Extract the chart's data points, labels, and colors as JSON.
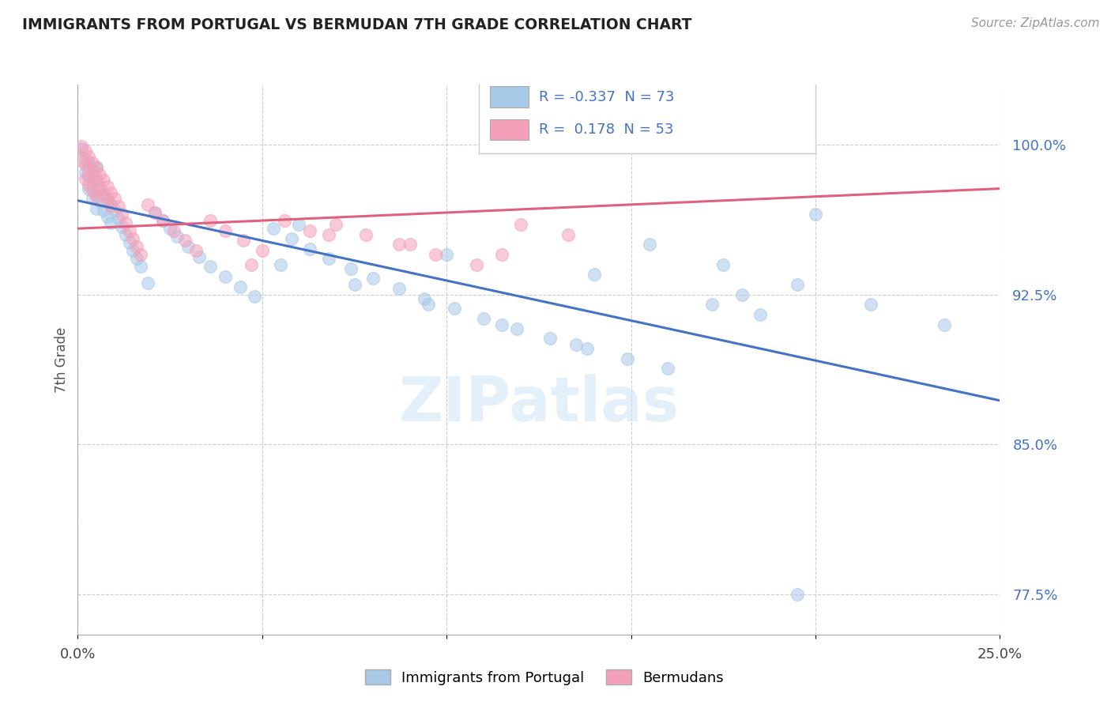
{
  "title": "IMMIGRANTS FROM PORTUGAL VS BERMUDAN 7TH GRADE CORRELATION CHART",
  "source_text": "Source: ZipAtlas.com",
  "ylabel": "7th Grade",
  "xlim": [
    0.0,
    0.25
  ],
  "ylim": [
    0.755,
    1.03
  ],
  "yticks": [
    0.775,
    0.85,
    0.925,
    1.0
  ],
  "ytick_labels": [
    "77.5%",
    "85.0%",
    "92.5%",
    "100.0%"
  ],
  "xtick_labels": [
    "0.0%",
    "25.0%"
  ],
  "legend_blue_r": "-0.337",
  "legend_blue_n": "73",
  "legend_pink_r": "0.178",
  "legend_pink_n": "53",
  "blue_color": "#a8c8e8",
  "pink_color": "#f4a0b8",
  "blue_line_color": "#4472C4",
  "pink_line_color": "#E06080",
  "watermark": "ZIPatlas",
  "blue_trend_x": [
    0.0,
    0.25
  ],
  "blue_trend_y": [
    0.972,
    0.872
  ],
  "pink_trend_x": [
    0.0,
    0.25
  ],
  "pink_trend_y": [
    0.958,
    0.978
  ],
  "blue_scatter_x": [
    0.001,
    0.002,
    0.002,
    0.003,
    0.003,
    0.003,
    0.004,
    0.004,
    0.004,
    0.005,
    0.005,
    0.005,
    0.005,
    0.006,
    0.006,
    0.007,
    0.007,
    0.008,
    0.008,
    0.009,
    0.009,
    0.01,
    0.011,
    0.012,
    0.013,
    0.014,
    0.015,
    0.016,
    0.017,
    0.019,
    0.021,
    0.023,
    0.025,
    0.027,
    0.03,
    0.033,
    0.036,
    0.04,
    0.044,
    0.048,
    0.053,
    0.058,
    0.063,
    0.068,
    0.074,
    0.08,
    0.087,
    0.094,
    0.102,
    0.11,
    0.119,
    0.128,
    0.138,
    0.149,
    0.16,
    0.172,
    0.185,
    0.055,
    0.075,
    0.095,
    0.115,
    0.135,
    0.155,
    0.175,
    0.195,
    0.215,
    0.235,
    0.06,
    0.1,
    0.14,
    0.18,
    0.2,
    0.195
  ],
  "blue_scatter_y": [
    0.998,
    0.993,
    0.986,
    0.991,
    0.984,
    0.978,
    0.987,
    0.98,
    0.973,
    0.989,
    0.982,
    0.975,
    0.968,
    0.979,
    0.972,
    0.975,
    0.967,
    0.973,
    0.964,
    0.97,
    0.961,
    0.967,
    0.963,
    0.959,
    0.955,
    0.951,
    0.947,
    0.943,
    0.939,
    0.931,
    0.966,
    0.962,
    0.958,
    0.954,
    0.949,
    0.944,
    0.939,
    0.934,
    0.929,
    0.924,
    0.958,
    0.953,
    0.948,
    0.943,
    0.938,
    0.933,
    0.928,
    0.923,
    0.918,
    0.913,
    0.908,
    0.903,
    0.898,
    0.893,
    0.888,
    0.92,
    0.915,
    0.94,
    0.93,
    0.92,
    0.91,
    0.9,
    0.95,
    0.94,
    0.93,
    0.92,
    0.91,
    0.96,
    0.945,
    0.935,
    0.925,
    0.965,
    0.775
  ],
  "pink_scatter_x": [
    0.001,
    0.001,
    0.002,
    0.002,
    0.002,
    0.003,
    0.003,
    0.003,
    0.004,
    0.004,
    0.004,
    0.005,
    0.005,
    0.005,
    0.006,
    0.006,
    0.007,
    0.007,
    0.008,
    0.008,
    0.009,
    0.009,
    0.01,
    0.011,
    0.012,
    0.013,
    0.014,
    0.015,
    0.016,
    0.017,
    0.019,
    0.021,
    0.023,
    0.026,
    0.029,
    0.032,
    0.036,
    0.04,
    0.045,
    0.05,
    0.056,
    0.063,
    0.07,
    0.078,
    0.087,
    0.097,
    0.108,
    0.12,
    0.133,
    0.047,
    0.068,
    0.09,
    0.115
  ],
  "pink_scatter_y": [
    0.999,
    0.992,
    0.997,
    0.99,
    0.983,
    0.994,
    0.987,
    0.98,
    0.991,
    0.984,
    0.977,
    0.988,
    0.981,
    0.974,
    0.985,
    0.978,
    0.982,
    0.975,
    0.979,
    0.972,
    0.976,
    0.969,
    0.973,
    0.969,
    0.965,
    0.961,
    0.957,
    0.953,
    0.949,
    0.945,
    0.97,
    0.966,
    0.962,
    0.957,
    0.952,
    0.947,
    0.962,
    0.957,
    0.952,
    0.947,
    0.962,
    0.957,
    0.96,
    0.955,
    0.95,
    0.945,
    0.94,
    0.96,
    0.955,
    0.94,
    0.955,
    0.95,
    0.945
  ]
}
